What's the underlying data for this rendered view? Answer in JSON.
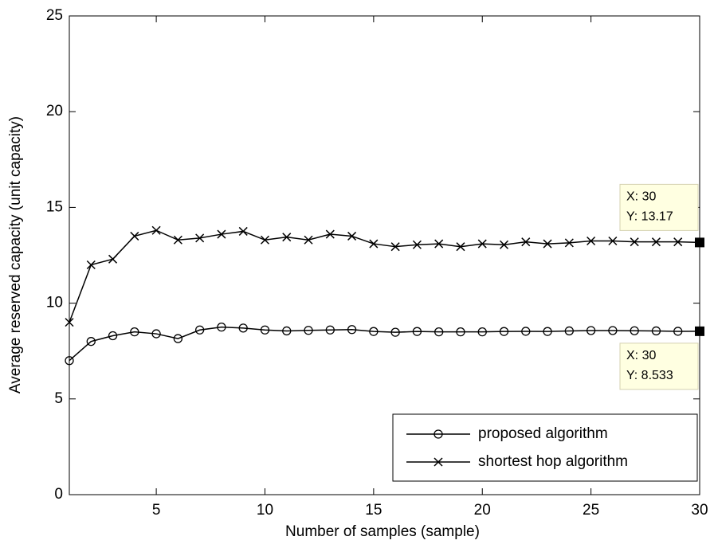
{
  "chart_data": {
    "type": "line",
    "xlabel": "Number of samples (sample)",
    "ylabel": "Average reserved capacity (unit capacity)",
    "x": [
      1,
      2,
      3,
      4,
      5,
      6,
      7,
      8,
      9,
      10,
      11,
      12,
      13,
      14,
      15,
      16,
      17,
      18,
      19,
      20,
      21,
      22,
      23,
      24,
      25,
      26,
      27,
      28,
      29,
      30
    ],
    "series": [
      {
        "name": "proposed algorithm",
        "color": "#000000",
        "marker": "circle",
        "values": [
          7.0,
          8.0,
          8.3,
          8.5,
          8.4,
          8.15,
          8.6,
          8.75,
          8.7,
          8.6,
          8.55,
          8.58,
          8.6,
          8.62,
          8.52,
          8.48,
          8.52,
          8.5,
          8.5,
          8.5,
          8.52,
          8.53,
          8.52,
          8.55,
          8.57,
          8.57,
          8.56,
          8.55,
          8.53,
          8.533
        ]
      },
      {
        "name": "shortest hop algorithm",
        "color": "#000000",
        "marker": "x",
        "values": [
          9.0,
          12.0,
          12.3,
          13.5,
          13.8,
          13.3,
          13.4,
          13.6,
          13.75,
          13.3,
          13.45,
          13.3,
          13.6,
          13.5,
          13.1,
          12.95,
          13.05,
          13.1,
          12.95,
          13.1,
          13.05,
          13.2,
          13.1,
          13.15,
          13.25,
          13.25,
          13.2,
          13.2,
          13.2,
          13.17
        ]
      }
    ],
    "xlim": [
      1,
      30
    ],
    "xticks": [
      5,
      10,
      15,
      20,
      25,
      30
    ],
    "ylim": [
      0,
      25
    ],
    "yticks": [
      0,
      5,
      10,
      15,
      20,
      25
    ],
    "legend": "lower right",
    "annotations": [
      {
        "x": 30,
        "y": 13.17,
        "lines": [
          "X: 30",
          "Y: 13.17"
        ],
        "position": "above"
      },
      {
        "x": 30,
        "y": 8.533,
        "lines": [
          "X: 30",
          "Y: 8.533"
        ],
        "position": "below"
      }
    ]
  }
}
